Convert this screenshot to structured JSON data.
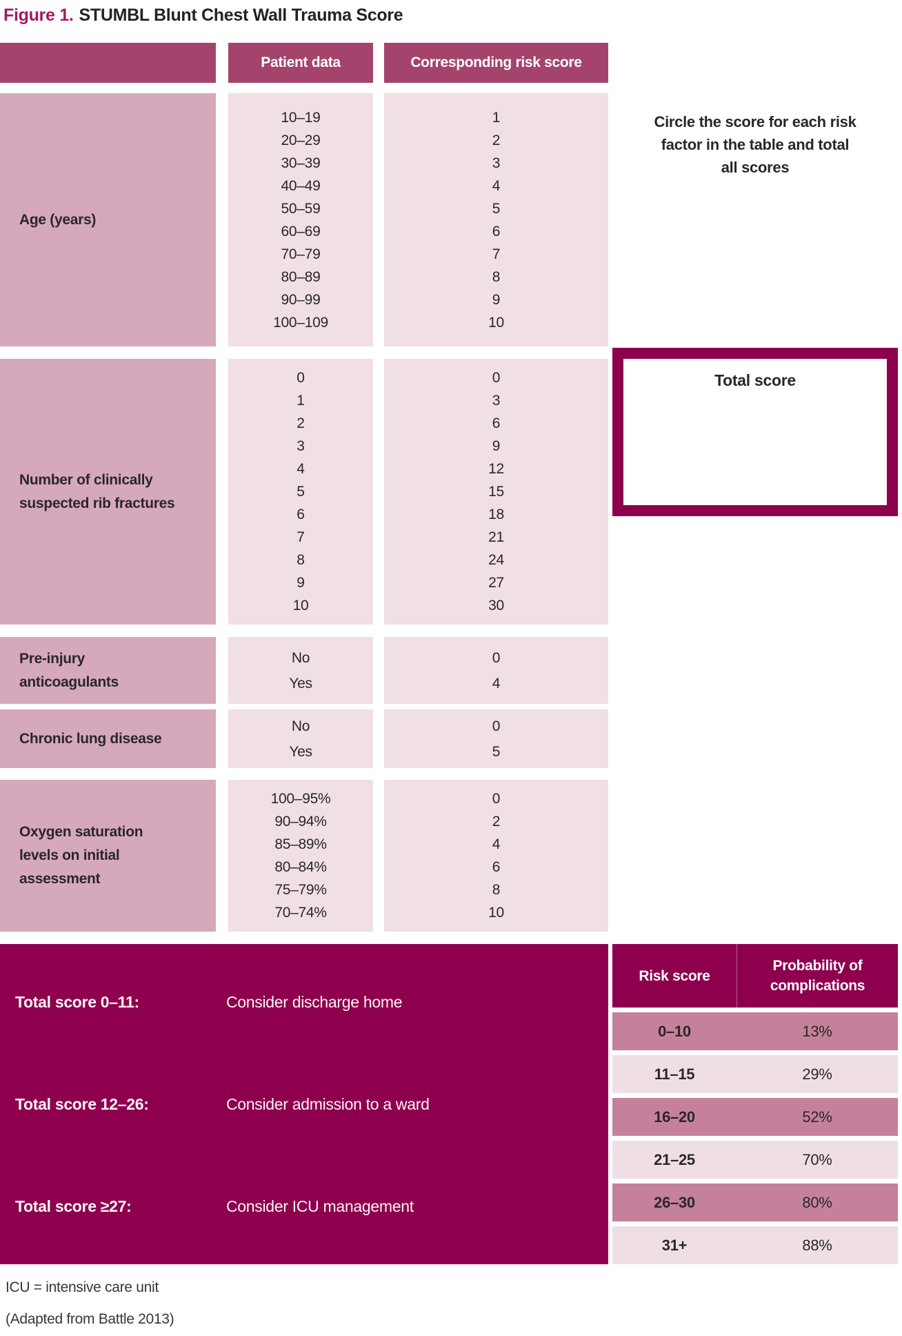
{
  "title": {
    "prefix": "Figure 1.",
    "text": "STUMBL Blunt Chest Wall Trauma Score"
  },
  "colors": {
    "header_maroon": "#a4446c",
    "dark_maroon": "#8e004e",
    "label_mauve": "#d5a9bb",
    "cell_pink": "#f0dfe6",
    "risk_row_mauve": "#c5819b",
    "title_magenta": "#a31a63",
    "text_dark": "#2b2627"
  },
  "table": {
    "headers": [
      "Patient data",
      "Corresponding risk score"
    ],
    "sections": [
      {
        "label": "Age (years)",
        "patient_data": [
          "10–19",
          "20–29",
          "30–39",
          "40–49",
          "50–59",
          "60–69",
          "70–79",
          "80–89",
          "90–99",
          "100–109"
        ],
        "risk_scores": [
          "1",
          "2",
          "3",
          "4",
          "5",
          "6",
          "7",
          "8",
          "9",
          "10"
        ]
      },
      {
        "label": "Number of clinically\nsuspected rib fractures",
        "patient_data": [
          "0",
          "1",
          "2",
          "3",
          "4",
          "5",
          "6",
          "7",
          "8",
          "9",
          "10"
        ],
        "risk_scores": [
          "0",
          "3",
          "6",
          "9",
          "12",
          "15",
          "18",
          "21",
          "24",
          "27",
          "30"
        ]
      },
      {
        "label": "Pre-injury\nanticoagulants",
        "patient_data": [
          "No",
          "Yes"
        ],
        "risk_scores": [
          "0",
          "4"
        ]
      },
      {
        "label": "Chronic lung disease",
        "patient_data": [
          "No",
          "Yes"
        ],
        "risk_scores": [
          "0",
          "5"
        ]
      },
      {
        "label": "Oxygen saturation\nlevels on initial\nassessment",
        "patient_data": [
          "100–95%",
          "90–94%",
          "85–89%",
          "80–84%",
          "75–79%",
          "70–74%"
        ],
        "risk_scores": [
          "0",
          "2",
          "4",
          "6",
          "8",
          "10"
        ]
      }
    ]
  },
  "instruction": "Circle the score for each risk\nfactor in the table and total\nall scores",
  "total_score_box": {
    "label": "Total score"
  },
  "recommendations": [
    {
      "label": "Total score 0–11:",
      "text": "Consider discharge home"
    },
    {
      "label": "Total score 12–26:",
      "text": "Consider admission to a ward"
    },
    {
      "label": "Total score ≥27:",
      "text": "Consider ICU management"
    }
  ],
  "risk_table": {
    "headers": [
      "Risk score",
      "Probability of\ncomplications"
    ],
    "rows": [
      {
        "score": "0–10",
        "probability": "13%"
      },
      {
        "score": "11–15",
        "probability": "29%"
      },
      {
        "score": "16–20",
        "probability": "52%"
      },
      {
        "score": "21–25",
        "probability": "70%"
      },
      {
        "score": "26–30",
        "probability": "80%"
      },
      {
        "score": "31+",
        "probability": "88%"
      }
    ]
  },
  "footnotes": [
    "ICU = intensive care unit",
    "(Adapted from Battle 2013)"
  ]
}
